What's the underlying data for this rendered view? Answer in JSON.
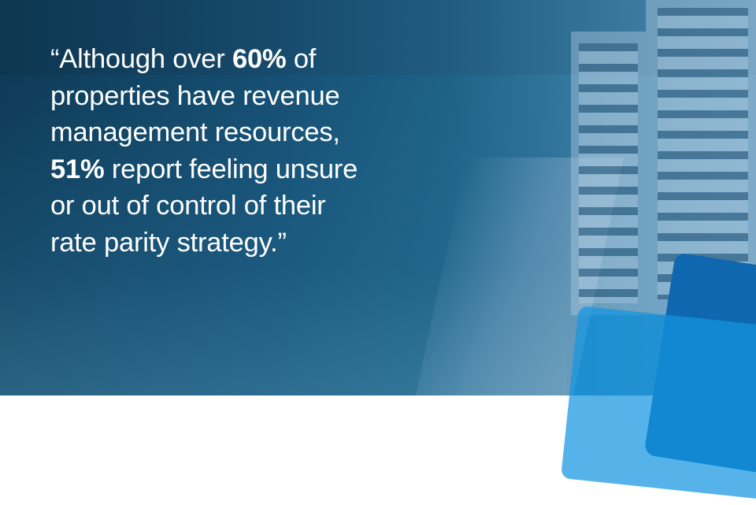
{
  "quote": {
    "line1_pre": "“Although over ",
    "line1_bold": "60%",
    "line1_post": " of",
    "line2": "properties have revenue",
    "line3": "management resources,",
    "line4_bold": "51%",
    "line4_post": " report feeling unsure",
    "line5": "or out of control of their",
    "line6": "rate parity strategy.”"
  },
  "colors": {
    "background": "#154e72",
    "accent_dark": "#0f67b0",
    "accent_light": "#1496e1",
    "text": "#ffffff"
  }
}
